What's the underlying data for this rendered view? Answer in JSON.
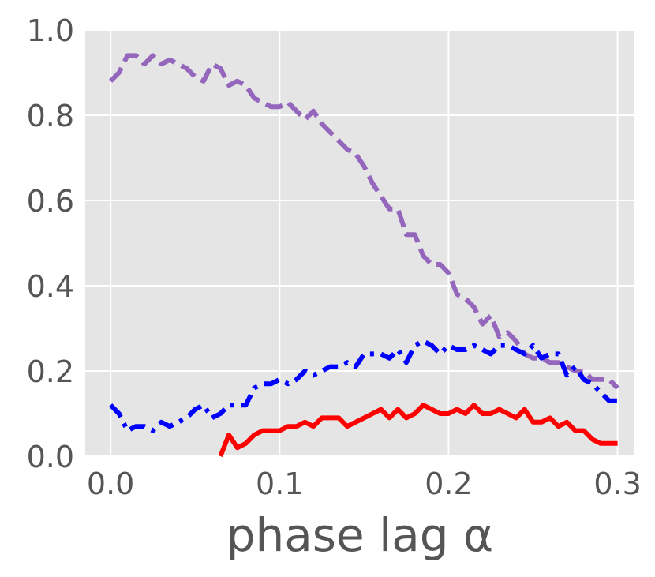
{
  "chart_data": {
    "type": "line",
    "xlabel": "phase lag α",
    "ylabel": "",
    "xlim": [
      -0.015,
      0.31
    ],
    "ylim": [
      0.0,
      1.0
    ],
    "grid": true,
    "x_ticks": [
      0.0,
      0.1,
      0.2,
      0.3
    ],
    "x_tick_labels": [
      "0.0",
      "0.1",
      "0.2",
      "0.3"
    ],
    "y_ticks": [
      0.0,
      0.2,
      0.4,
      0.6,
      0.8,
      1.0
    ],
    "y_tick_labels": [
      "0.0",
      "0.2",
      "0.4",
      "0.6",
      "0.8",
      "1.0"
    ],
    "series": [
      {
        "color": "#9467bd",
        "dash": "dashed",
        "x": [
          0.0,
          0.005,
          0.01,
          0.015,
          0.02,
          0.025,
          0.03,
          0.035,
          0.04,
          0.045,
          0.05,
          0.055,
          0.06,
          0.065,
          0.07,
          0.075,
          0.08,
          0.085,
          0.09,
          0.095,
          0.1,
          0.105,
          0.11,
          0.115,
          0.12,
          0.125,
          0.13,
          0.135,
          0.14,
          0.145,
          0.15,
          0.155,
          0.16,
          0.165,
          0.17,
          0.175,
          0.18,
          0.185,
          0.19,
          0.195,
          0.2,
          0.205,
          0.21,
          0.215,
          0.22,
          0.225,
          0.23,
          0.235,
          0.24,
          0.245,
          0.25,
          0.255,
          0.26,
          0.265,
          0.27,
          0.275,
          0.28,
          0.285,
          0.29,
          0.295,
          0.3
        ],
        "y": [
          0.88,
          0.9,
          0.94,
          0.94,
          0.92,
          0.94,
          0.92,
          0.93,
          0.92,
          0.91,
          0.89,
          0.88,
          0.92,
          0.91,
          0.87,
          0.88,
          0.87,
          0.84,
          0.83,
          0.82,
          0.82,
          0.83,
          0.81,
          0.79,
          0.81,
          0.78,
          0.76,
          0.74,
          0.72,
          0.71,
          0.68,
          0.64,
          0.61,
          0.58,
          0.58,
          0.52,
          0.52,
          0.47,
          0.45,
          0.45,
          0.43,
          0.38,
          0.37,
          0.35,
          0.31,
          0.33,
          0.28,
          0.29,
          0.27,
          0.24,
          0.23,
          0.23,
          0.22,
          0.22,
          0.21,
          0.2,
          0.2,
          0.18,
          0.18,
          0.18,
          0.16
        ]
      },
      {
        "color": "#0000ff",
        "dash": "dashdot",
        "x": [
          0.0,
          0.005,
          0.01,
          0.015,
          0.02,
          0.025,
          0.03,
          0.035,
          0.04,
          0.045,
          0.05,
          0.055,
          0.06,
          0.065,
          0.07,
          0.075,
          0.08,
          0.085,
          0.09,
          0.095,
          0.1,
          0.105,
          0.11,
          0.115,
          0.12,
          0.125,
          0.13,
          0.135,
          0.14,
          0.145,
          0.15,
          0.155,
          0.16,
          0.165,
          0.17,
          0.175,
          0.18,
          0.185,
          0.19,
          0.195,
          0.2,
          0.205,
          0.21,
          0.215,
          0.22,
          0.225,
          0.23,
          0.235,
          0.24,
          0.245,
          0.25,
          0.255,
          0.26,
          0.265,
          0.27,
          0.275,
          0.28,
          0.285,
          0.29,
          0.295,
          0.3
        ],
        "y": [
          0.12,
          0.1,
          0.06,
          0.07,
          0.07,
          0.06,
          0.08,
          0.07,
          0.08,
          0.09,
          0.11,
          0.12,
          0.09,
          0.1,
          0.12,
          0.12,
          0.12,
          0.16,
          0.17,
          0.17,
          0.18,
          0.17,
          0.18,
          0.2,
          0.19,
          0.2,
          0.21,
          0.21,
          0.22,
          0.21,
          0.24,
          0.24,
          0.24,
          0.23,
          0.25,
          0.22,
          0.26,
          0.27,
          0.26,
          0.24,
          0.26,
          0.25,
          0.25,
          0.26,
          0.25,
          0.24,
          0.26,
          0.26,
          0.25,
          0.24,
          0.26,
          0.23,
          0.24,
          0.24,
          0.19,
          0.21,
          0.18,
          0.17,
          0.15,
          0.13,
          0.13
        ]
      },
      {
        "color": "#ff0000",
        "dash": "solid",
        "x": [
          0.065,
          0.07,
          0.075,
          0.08,
          0.085,
          0.09,
          0.095,
          0.1,
          0.105,
          0.11,
          0.115,
          0.12,
          0.125,
          0.13,
          0.135,
          0.14,
          0.145,
          0.15,
          0.155,
          0.16,
          0.165,
          0.17,
          0.175,
          0.18,
          0.185,
          0.19,
          0.195,
          0.2,
          0.205,
          0.21,
          0.215,
          0.22,
          0.225,
          0.23,
          0.235,
          0.24,
          0.245,
          0.25,
          0.255,
          0.26,
          0.265,
          0.27,
          0.275,
          0.28,
          0.285,
          0.29,
          0.295,
          0.3
        ],
        "y": [
          0.0,
          0.05,
          0.02,
          0.03,
          0.05,
          0.06,
          0.06,
          0.06,
          0.07,
          0.07,
          0.08,
          0.07,
          0.09,
          0.09,
          0.09,
          0.07,
          0.08,
          0.09,
          0.1,
          0.11,
          0.09,
          0.11,
          0.09,
          0.1,
          0.12,
          0.11,
          0.1,
          0.1,
          0.11,
          0.1,
          0.12,
          0.1,
          0.1,
          0.11,
          0.1,
          0.09,
          0.11,
          0.08,
          0.08,
          0.09,
          0.07,
          0.08,
          0.06,
          0.06,
          0.04,
          0.03,
          0.03,
          0.03
        ]
      }
    ]
  }
}
